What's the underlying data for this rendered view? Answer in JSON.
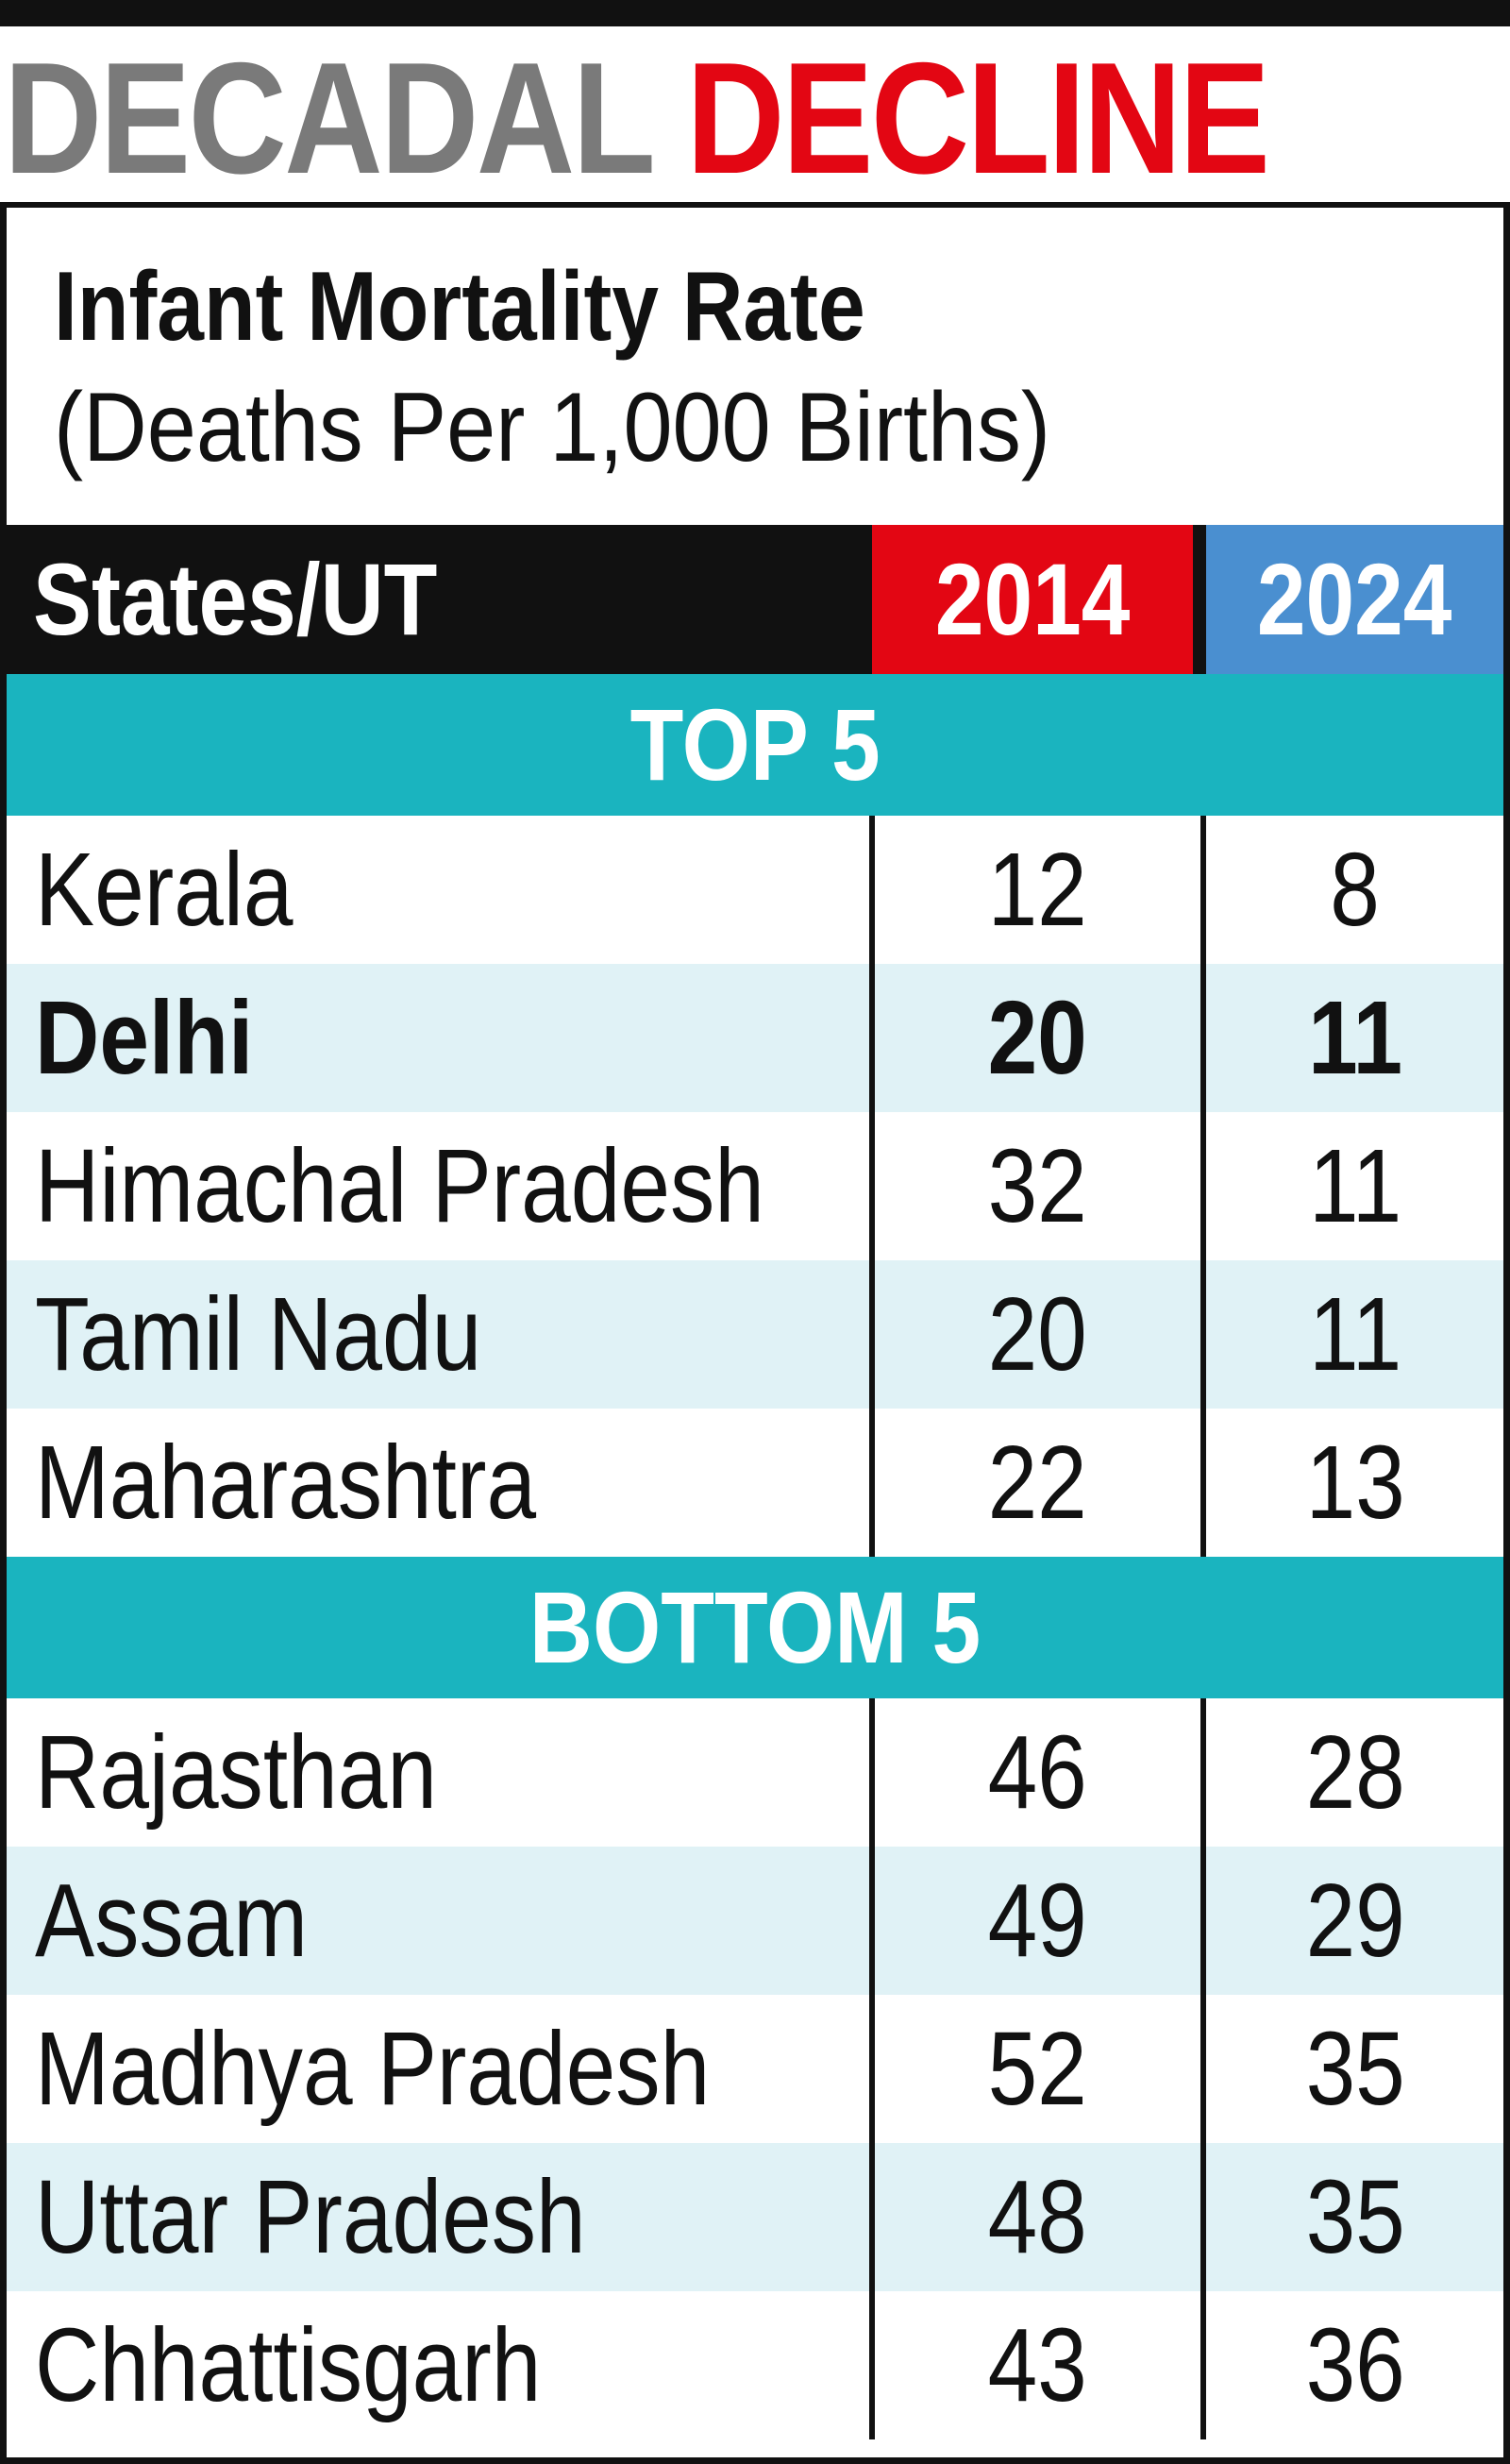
{
  "headline": {
    "word1": "DECADAL",
    "word2": "DECLINE"
  },
  "colors": {
    "header_bg": "#111111",
    "col_2014": "#e30613",
    "col_2024": "#4a8fd0",
    "section_bg": "#1ab4bf",
    "row_alt": "#e0f2f6",
    "headline_gray": "#7a7a7a",
    "headline_red": "#e30613"
  },
  "chart_data": {
    "type": "table",
    "title": "Infant Mortality Rate",
    "subtitle": "(Deaths Per 1,000 Births)",
    "columns": [
      "States/UT",
      "2014",
      "2024"
    ],
    "sections": [
      {
        "label": "TOP 5",
        "rows": [
          {
            "state": "Kerala",
            "y2014": "12",
            "y2024": "8"
          },
          {
            "state": "Delhi",
            "y2014": "20",
            "y2024": "11",
            "highlight": true
          },
          {
            "state": "Himachal Pradesh",
            "y2014": "32",
            "y2024": "11"
          },
          {
            "state": "Tamil Nadu",
            "y2014": "20",
            "y2024": "11"
          },
          {
            "state": "Maharashtra",
            "y2014": "22",
            "y2024": "13"
          }
        ]
      },
      {
        "label": "BOTTOM 5",
        "rows": [
          {
            "state": "Rajasthan",
            "y2014": "46",
            "y2024": "28"
          },
          {
            "state": "Assam",
            "y2014": "49",
            "y2024": "29"
          },
          {
            "state": "Madhya Pradesh",
            "y2014": "52",
            "y2024": "35"
          },
          {
            "state": "Uttar Pradesh",
            "y2014": "48",
            "y2024": "35"
          },
          {
            "state": "Chhattisgarh",
            "y2014": "43",
            "y2024": "36"
          }
        ]
      }
    ]
  }
}
